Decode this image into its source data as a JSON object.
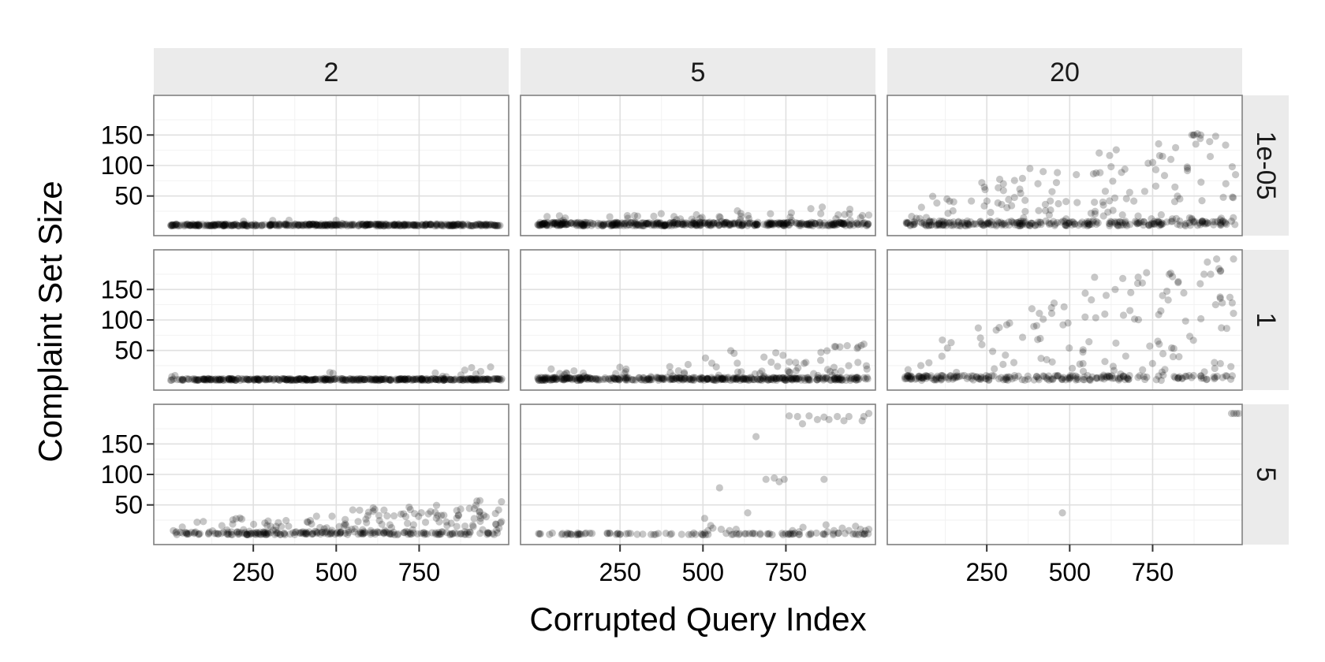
{
  "chart_data": {
    "type": "scatter",
    "facet_layout": "grid",
    "xlabel": "Corrupted Query Index",
    "ylabel": "Complaint Set Size",
    "column_strips": [
      "2",
      "5",
      "20"
    ],
    "row_strips": [
      "1e-05",
      "1",
      "5"
    ],
    "xlim": [
      -50,
      1020
    ],
    "ylim": [
      -15,
      215
    ],
    "x_ticks": [
      250,
      500,
      750
    ],
    "y_ticks": [
      50,
      100,
      150
    ],
    "grid": true,
    "point_color": "#000000",
    "point_alpha": 0.22,
    "panel_background": "#ffffff",
    "strip_background": "#ebebeb",
    "grid_color": "#e0e0e0",
    "panels": [
      {
        "col": "2",
        "row": "1e-05",
        "generator": {
          "seed": 11,
          "n": 420,
          "base_max": 3,
          "decay": 0.15,
          "tail_prob": 0.05,
          "tail_scale": 8,
          "x_growth": 0.6,
          "cap": 20
        }
      },
      {
        "col": "5",
        "row": "1e-05",
        "generator": {
          "seed": 12,
          "n": 480,
          "base_max": 6,
          "decay": 0.12,
          "tail_prob": 0.18,
          "tail_scale": 18,
          "x_growth": 0.5,
          "cap": 42
        }
      },
      {
        "col": "20",
        "row": "1e-05",
        "generator": {
          "seed": 13,
          "n": 380,
          "base_max": 8,
          "decay": 0.1,
          "tail_prob": 0.32,
          "tail_scale": 55,
          "x_growth": 1.2,
          "cap": 150
        }
      },
      {
        "col": "2",
        "row": "1",
        "generator": {
          "seed": 21,
          "n": 440,
          "base_max": 3,
          "decay": 0.15,
          "tail_prob": 0.07,
          "tail_scale": 10,
          "x_growth": 0.8,
          "cap": 26
        }
      },
      {
        "col": "5",
        "row": "1",
        "generator": {
          "seed": 22,
          "n": 460,
          "base_max": 5,
          "decay": 0.12,
          "tail_prob": 0.16,
          "tail_scale": 22,
          "x_growth": 1.4,
          "cap": 135
        }
      },
      {
        "col": "20",
        "row": "1",
        "generator": {
          "seed": 23,
          "n": 320,
          "base_max": 8,
          "decay": 0.1,
          "tail_prob": 0.34,
          "tail_scale": 60,
          "x_growth": 1.5,
          "cap": 200
        }
      },
      {
        "col": "2",
        "row": "5",
        "generator": {
          "seed": 31,
          "n": 330,
          "base_max": 5,
          "decay": 0.1,
          "tail_prob": 0.42,
          "tail_scale": 22,
          "x_growth": 1.0,
          "cap": 78
        }
      },
      {
        "col": "5",
        "row": "5",
        "generator": {
          "seed": 32,
          "n": 110,
          "base_max": 3,
          "decay": 0.12,
          "tail_prob": 0.05,
          "tail_scale": 10,
          "x_growth": 0.6,
          "cap": 30
        }
      },
      {
        "col": "20",
        "row": "5",
        "generator": {
          "seed": 33,
          "n": 0
        }
      }
    ],
    "extra_points": [
      {
        "col": "5",
        "row": "5",
        "points": [
          [
            980,
            188
          ],
          [
            985,
            195
          ],
          [
            940,
            195
          ],
          [
            925,
            188
          ],
          [
            905,
            195
          ],
          [
            880,
            190
          ],
          [
            865,
            194
          ],
          [
            845,
            190
          ],
          [
            820,
            196
          ],
          [
            800,
            183
          ],
          [
            785,
            195
          ],
          [
            760,
            196
          ],
          [
            690,
            92
          ],
          [
            715,
            94
          ],
          [
            730,
            88
          ],
          [
            745,
            92
          ],
          [
            865,
            92
          ],
          [
            660,
            162
          ],
          [
            550,
            78
          ],
          [
            635,
            37
          ],
          [
            505,
            28
          ],
          [
            515,
            8
          ],
          [
            530,
            12
          ],
          [
            555,
            10
          ],
          [
            580,
            8
          ],
          [
            600,
            10
          ],
          [
            920,
            12
          ],
          [
            940,
            8
          ],
          [
            960,
            15
          ],
          [
            975,
            10
          ],
          [
            990,
            8
          ],
          [
            875,
            6
          ],
          [
            895,
            8
          ],
          [
            770,
            8
          ],
          [
            790,
            6
          ],
          [
            1000,
            10
          ],
          [
            1000,
            200
          ]
        ]
      },
      {
        "col": "20",
        "row": "5",
        "points": [
          [
            988,
            200
          ],
          [
            995,
            200
          ],
          [
            1003,
            200
          ],
          [
            1010,
            200
          ],
          [
            478,
            37
          ]
        ]
      },
      {
        "col": "20",
        "row": "1e-05",
        "points": [
          [
            875,
            150
          ],
          [
            895,
            150
          ],
          [
            885,
            152
          ],
          [
            940,
            148
          ],
          [
            990,
            98
          ],
          [
            1000,
            85
          ],
          [
            805,
            110
          ],
          [
            780,
            115
          ],
          [
            380,
            95
          ],
          [
            420,
            90
          ],
          [
            300,
            70
          ],
          [
            460,
            72
          ],
          [
            520,
            85
          ],
          [
            600,
            40
          ],
          [
            620,
            42
          ]
        ]
      },
      {
        "col": "20",
        "row": "1",
        "points": [
          [
            915,
            195
          ],
          [
            925,
            175
          ],
          [
            905,
            175
          ],
          [
            940,
            125
          ],
          [
            960,
            128
          ],
          [
            660,
            168
          ],
          [
            705,
            160
          ],
          [
            575,
            170
          ],
          [
            800,
            175
          ],
          [
            495,
            95
          ],
          [
            480,
            92
          ],
          [
            445,
            120
          ],
          [
            990,
            128
          ]
        ]
      }
    ]
  }
}
